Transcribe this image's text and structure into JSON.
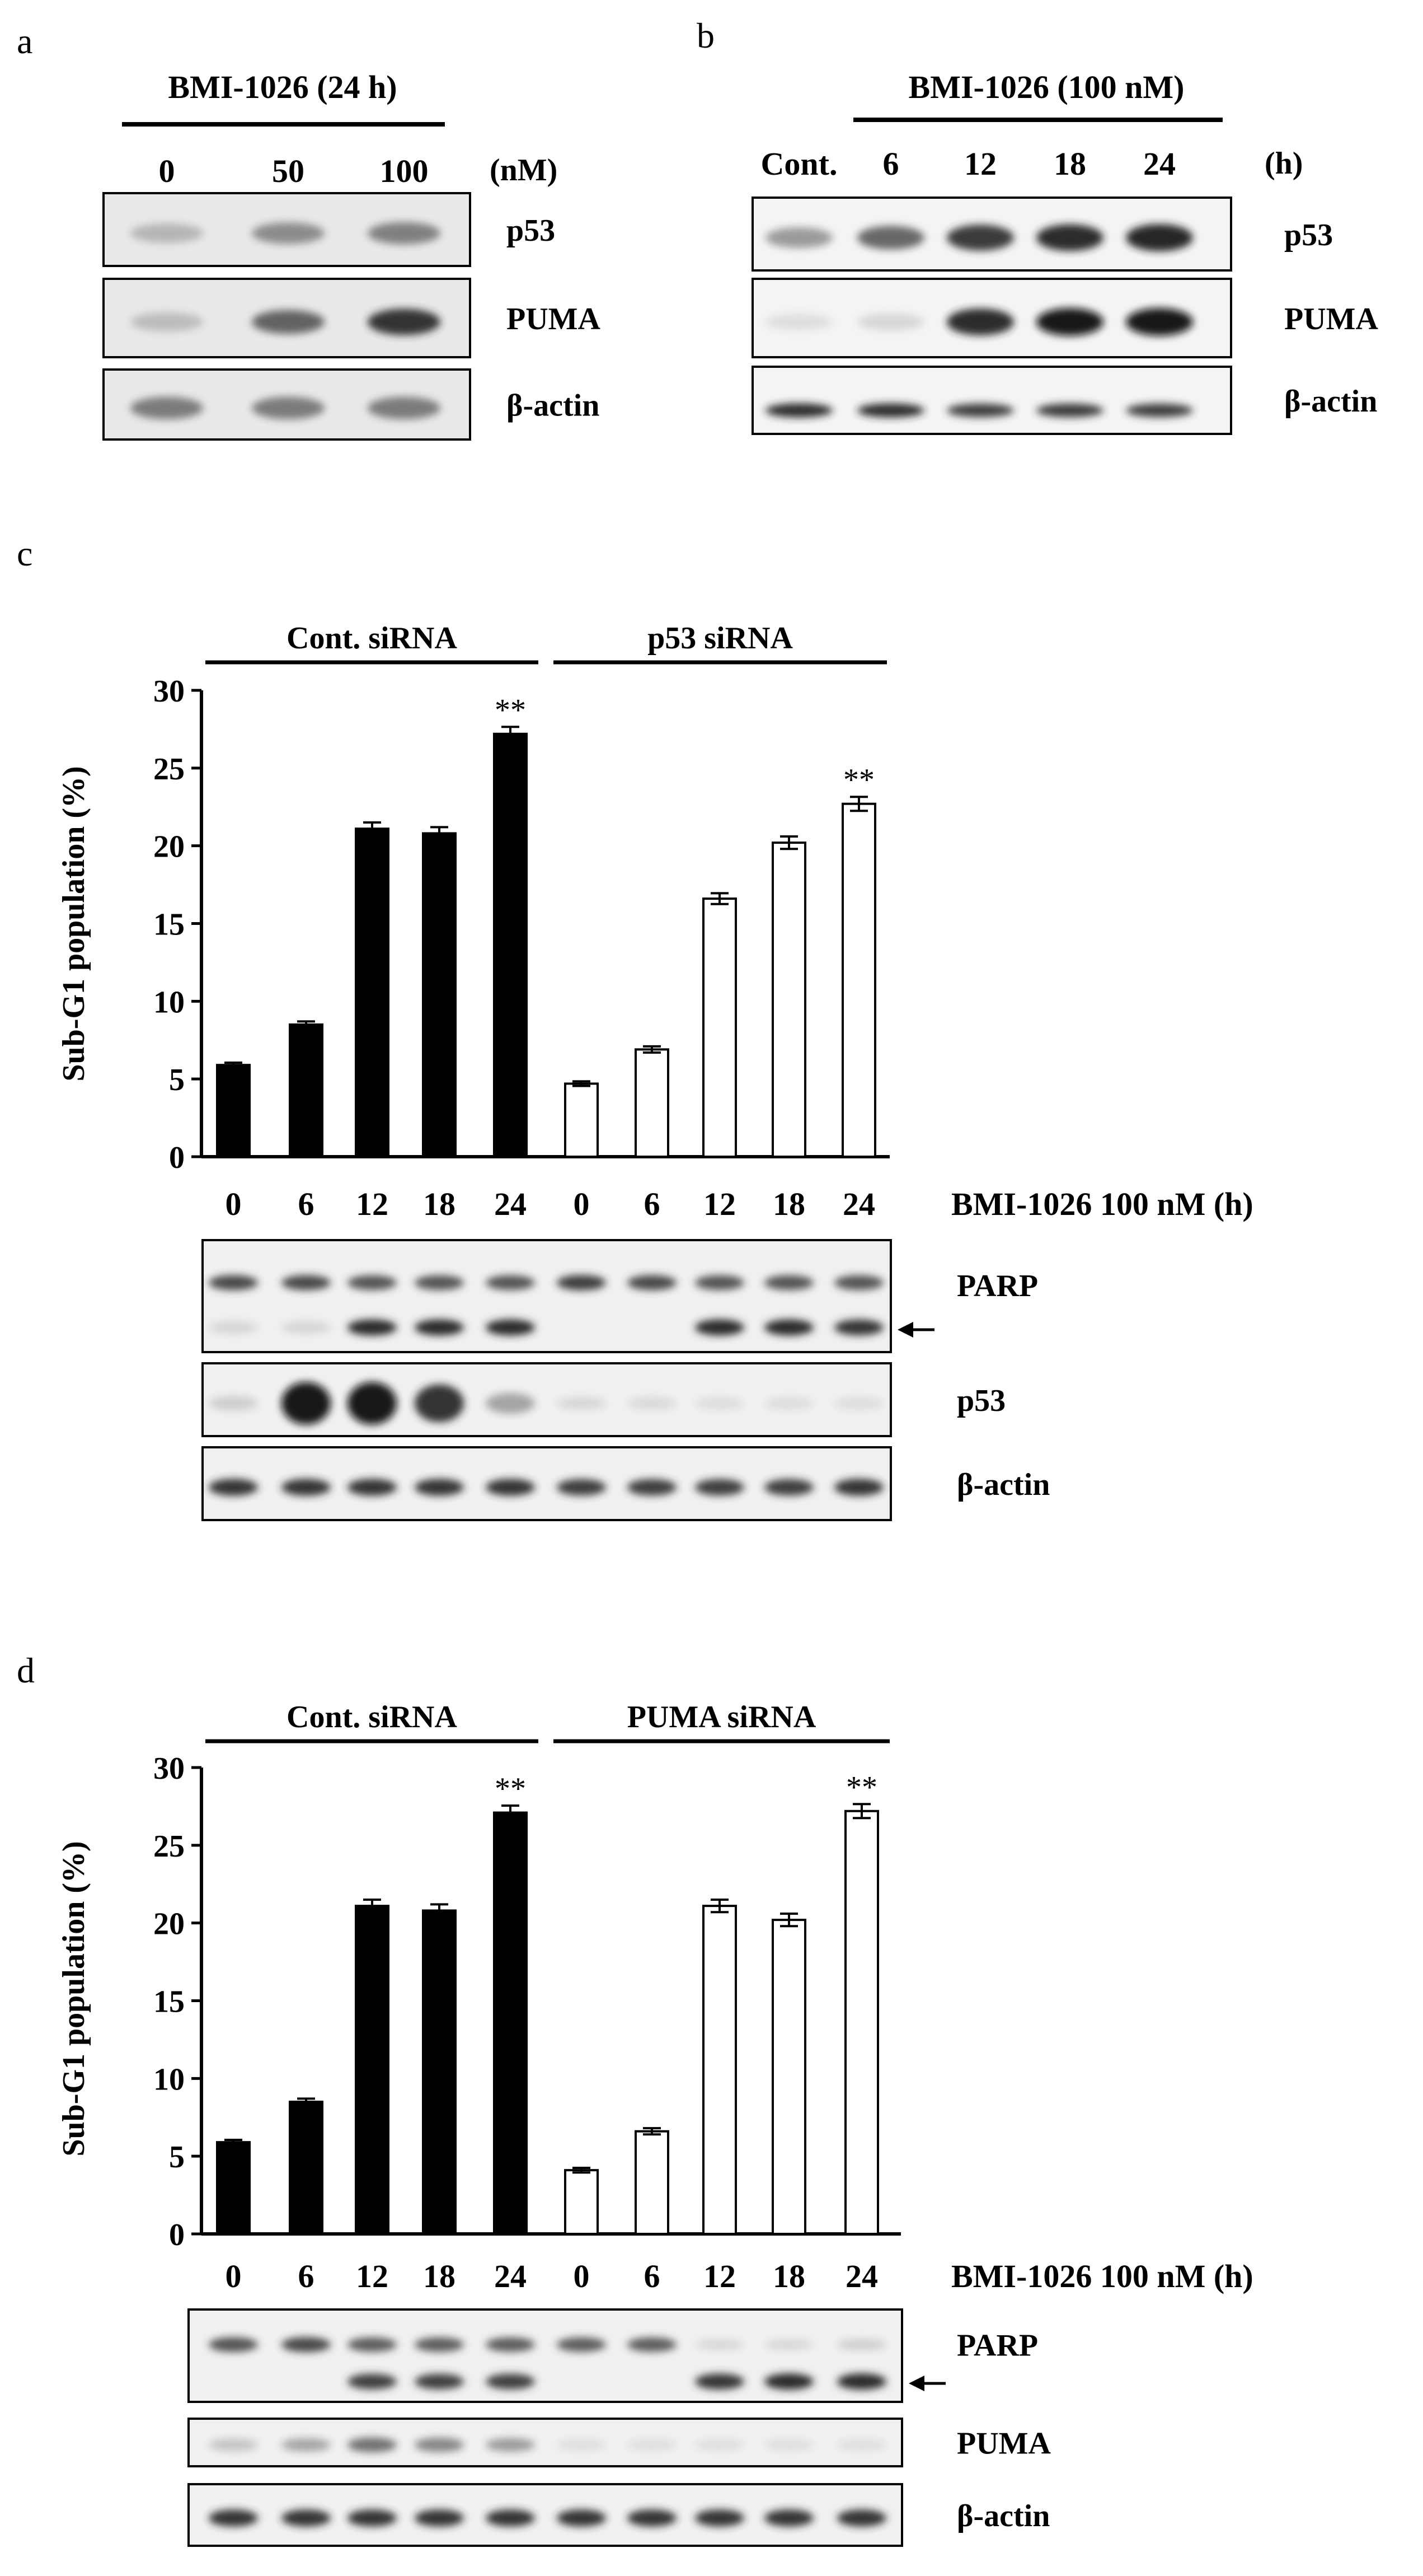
{
  "panel_a": {
    "letter": "a",
    "header": "BMI-1026 (24 h)",
    "unit": "(nM)",
    "lanes": [
      "0",
      "50",
      "100"
    ],
    "blots": [
      {
        "label": "p53",
        "intensity": [
          0.22,
          0.42,
          0.48
        ]
      },
      {
        "label": "PUMA",
        "intensity": [
          0.18,
          0.62,
          0.85
        ]
      },
      {
        "label": "β-actin",
        "intensity": [
          0.5,
          0.5,
          0.5
        ]
      }
    ]
  },
  "panel_b": {
    "letter": "b",
    "header": "BMI-1026 (100 nM)",
    "unit": "(h)",
    "lanes": [
      "Cont.",
      "6",
      "12",
      "18",
      "24"
    ],
    "blots": [
      {
        "label": "p53",
        "intensity": [
          0.35,
          0.6,
          0.82,
          0.88,
          0.92
        ]
      },
      {
        "label": "PUMA",
        "intensity": [
          0.02,
          0.05,
          0.9,
          0.97,
          0.97
        ]
      },
      {
        "label": "β-actin",
        "intensity": [
          0.9,
          0.88,
          0.8,
          0.82,
          0.8
        ]
      }
    ]
  },
  "chart_data": [
    {
      "type": "bar",
      "panel": "c",
      "ylabel": "Sub-G1 population (%)",
      "ylim": [
        0,
        30
      ],
      "yticks": [
        "0",
        "5",
        "10",
        "15",
        "20",
        "25",
        "30"
      ],
      "categories": [
        "0",
        "6",
        "12",
        "18",
        "24",
        "0",
        "6",
        "12",
        "18",
        "24"
      ],
      "xlabel": "BMI-1026 100 nM (h)",
      "groups": [
        {
          "name": "Cont. siRNA",
          "fill": "#000000",
          "values": [
            5.9,
            8.5,
            21.1,
            20.8,
            27.2
          ],
          "errors": [
            0.15,
            0.2,
            0.4,
            0.4,
            0.45
          ],
          "sig": [
            "",
            "",
            "",
            "",
            "**"
          ]
        },
        {
          "name": "p53 siRNA",
          "fill": "#ffffff",
          "values": [
            4.7,
            6.9,
            16.6,
            20.2,
            22.7
          ],
          "errors": [
            0.15,
            0.2,
            0.35,
            0.4,
            0.45
          ],
          "sig": [
            "",
            "",
            "",
            "",
            "**"
          ]
        }
      ],
      "blots": [
        {
          "label": "PARP",
          "kind": "parp",
          "intensity": [
            0.75,
            0.75,
            0.7,
            0.7,
            0.7,
            0.8,
            0.75,
            0.7,
            0.7,
            0.7
          ],
          "cleaved": [
            0.05,
            0.05,
            0.85,
            0.85,
            0.85,
            0.0,
            0.0,
            0.85,
            0.85,
            0.8
          ],
          "arrow": true
        },
        {
          "label": "p53",
          "kind": "single",
          "intensity": [
            0.1,
            1.0,
            1.0,
            0.85,
            0.3,
            0.05,
            0.04,
            0.03,
            0.03,
            0.03
          ]
        },
        {
          "label": "β-actin",
          "kind": "single",
          "intensity": [
            0.85,
            0.85,
            0.85,
            0.85,
            0.85,
            0.8,
            0.8,
            0.8,
            0.8,
            0.85
          ]
        }
      ]
    },
    {
      "type": "bar",
      "panel": "d",
      "ylabel": "Sub-G1 population (%)",
      "ylim": [
        0,
        30
      ],
      "yticks": [
        "0",
        "5",
        "10",
        "15",
        "20",
        "25",
        "30"
      ],
      "categories": [
        "0",
        "6",
        "12",
        "18",
        "24",
        "0",
        "6",
        "12",
        "18",
        "24"
      ],
      "xlabel": "BMI-1026 100 nM (h)",
      "groups": [
        {
          "name": "Cont. siRNA",
          "fill": "#000000",
          "values": [
            5.9,
            8.5,
            21.1,
            20.8,
            27.1
          ],
          "errors": [
            0.15,
            0.2,
            0.4,
            0.4,
            0.45
          ],
          "sig": [
            "",
            "",
            "",
            "",
            "**"
          ]
        },
        {
          "name": "PUMA siRNA",
          "fill": "#ffffff",
          "values": [
            4.1,
            6.6,
            21.1,
            20.2,
            27.2
          ],
          "errors": [
            0.15,
            0.2,
            0.4,
            0.4,
            0.45
          ],
          "sig": [
            "",
            "",
            "",
            "",
            "**"
          ]
        }
      ],
      "blots": [
        {
          "label": "PARP",
          "kind": "parp",
          "intensity": [
            0.7,
            0.75,
            0.65,
            0.65,
            0.65,
            0.65,
            0.65,
            0.05,
            0.05,
            0.1
          ],
          "cleaved": [
            0.0,
            0.0,
            0.75,
            0.75,
            0.75,
            0.0,
            0.0,
            0.8,
            0.85,
            0.85
          ],
          "arrow": true
        },
        {
          "label": "PUMA",
          "kind": "single",
          "intensity": [
            0.15,
            0.3,
            0.55,
            0.45,
            0.35,
            0.02,
            0.02,
            0.02,
            0.02,
            0.02
          ]
        },
        {
          "label": "β-actin",
          "kind": "single",
          "intensity": [
            0.85,
            0.85,
            0.85,
            0.85,
            0.85,
            0.85,
            0.85,
            0.85,
            0.85,
            0.85
          ]
        }
      ]
    }
  ]
}
